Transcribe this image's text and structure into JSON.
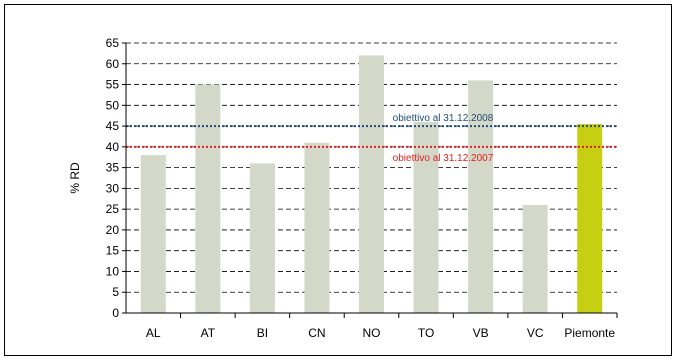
{
  "chart_data": {
    "type": "bar",
    "title": "",
    "xlabel": "",
    "ylabel": "% RD",
    "ylim": [
      0,
      65
    ],
    "ytick_step": 5,
    "grid": "horizontal-dashed",
    "categories": [
      "AL",
      "AT",
      "BI",
      "CN",
      "NO",
      "TO",
      "VB",
      "VC",
      "Piemonte"
    ],
    "values": [
      38,
      55,
      36,
      41,
      62,
      46,
      56,
      26,
      45.5
    ],
    "bar_colors": {
      "default": "#d4d8c8",
      "highlight": "#c7cf12",
      "highlight_category": "Piemonte"
    },
    "reference_lines": [
      {
        "label": "obiettivo al 31.12.2008",
        "value": 45,
        "color": "#1f4e79"
      },
      {
        "label": "obiettivo al 31.12.2007",
        "value": 40,
        "color": "#e02020"
      }
    ]
  }
}
